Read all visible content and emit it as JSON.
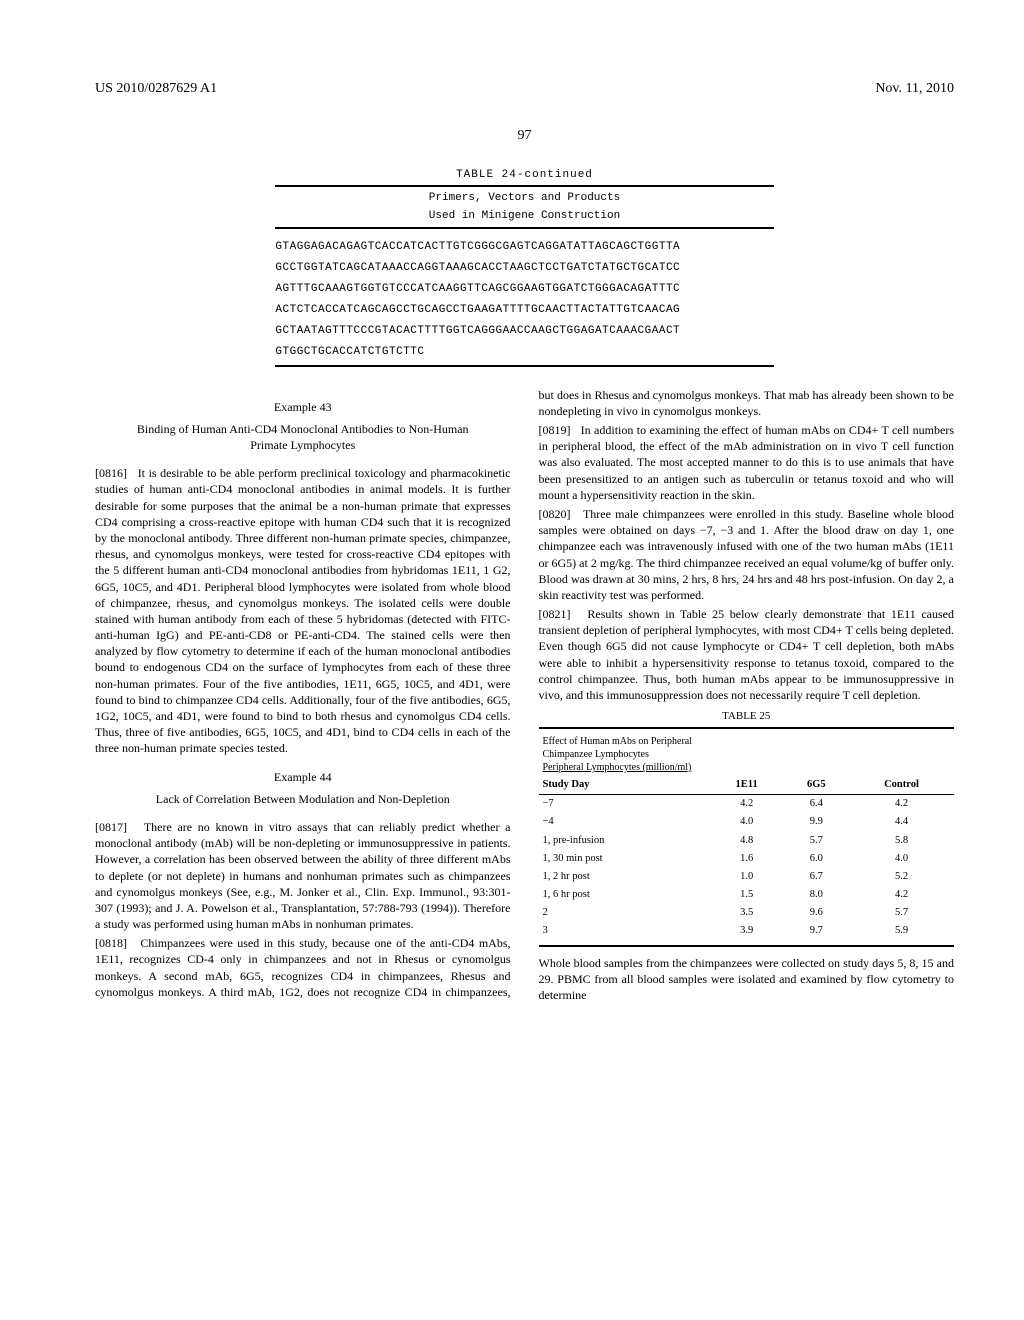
{
  "header": {
    "pub_no": "US 2010/0287629 A1",
    "date": "Nov. 11, 2010",
    "page": "97"
  },
  "table24": {
    "title": "TABLE 24-continued",
    "subtitle1": "Primers, Vectors and Products",
    "subtitle2": "Used in Minigene Construction",
    "seq1": "GTAGGAGACAGAGTCACCATCACTTGTCGGGCGAGTCAGGATATTAGCAGCTGGTTA",
    "seq2": "GCCTGGTATCAGCATAAACCAGGTAAAGCACCTAAGCTCCTGATCTATGCTGCATCC",
    "seq3": "AGTTTGCAAAGTGGTGTCCCATCAAGGTTCAGCGGAAGTGGATCTGGGACAGATTTC",
    "seq4": "ACTCTCACCATCAGCAGCCTGCAGCCTGAAGATTTTGCAACTTACTATTGTCAACAG",
    "seq5": "GCTAATAGTTTCCCGTACACTTTTGGTCAGGGAACCAAGCTGGAGATCAAACGAACT",
    "seq6": "GTGGCTGCACCATCTGTCTTC"
  },
  "ex43": {
    "label": "Example 43",
    "title": "Binding of Human Anti-CD4 Monoclonal Antibodies to Non-Human Primate Lymphocytes",
    "p0816_num": "[0816]",
    "p0816": "It is desirable to be able perform preclinical toxicology and pharmacokinetic studies of human anti-CD4 monoclonal antibodies in animal models. It is further desirable for some purposes that the animal be a non-human primate that expresses CD4 comprising a cross-reactive epitope with human CD4 such that it is recognized by the monoclonal antibody. Three different non-human primate species, chimpanzee, rhesus, and cynomolgus monkeys, were tested for cross-reactive CD4 epitopes with the 5 different human anti-CD4 monoclonal antibodies from hybridomas 1E11, 1 G2, 6G5, 10C5, and 4D1. Peripheral blood lymphocytes were isolated from whole blood of chimpanzee, rhesus, and cynomolgus monkeys. The isolated cells were double stained with human antibody from each of these 5 hybridomas (detected with FITC-anti-human IgG) and PE-anti-CD8 or PE-anti-CD4. The stained cells were then analyzed by flow cytometry to determine if each of the human monoclonal antibodies bound to endogenous CD4 on the surface of lymphocytes from each of these three non-human primates. Four of the five antibodies, 1E11, 6G5, 10C5, and 4D1, were found to bind to chimpanzee CD4 cells. Additionally, four of the five antibodies, 6G5, 1G2, 10C5, and 4D1, were found to bind to both rhesus and cynomolgus CD4 cells. Thus, three of five antibodies, 6G5, 10C5, and 4D1, bind to CD4 cells in each of the three non-human primate species tested."
  },
  "ex44": {
    "label": "Example 44",
    "title": "Lack of Correlation Between Modulation and Non-Depletion",
    "p0817_num": "[0817]",
    "p0817": "There are no known in vitro assays that can reliably predict whether a monoclonal antibody (mAb) will be non-depleting or immunosuppressive in patients. However, a correlation has been observed between the ability of three different mAbs to deplete (or not deplete) in humans and nonhuman primates such as chimpanzees and cynomolgus monkeys (See, e.g., M. Jonker et al., Clin. Exp. Immunol., 93:301-307 (1993); and J. A. Powelson et al., Transplantation, 57:788-793 (1994)). Therefore a study was performed using human mAbs in nonhuman primates.",
    "p0818_num": "[0818]",
    "p0818": "Chimpanzees were used in this study, because one of the anti-CD4 mAbs, 1E11, recognizes CD-4 only in chimpanzees and not in Rhesus or cynomolgus monkeys. A second mAb, 6G5, recognizes CD4 in chimpanzees, Rhesus and cynomolgus monkeys. A third mAb, 1G2, does not recognize CD4 in chimpanzees, but does in Rhesus and cynomolgus monkeys. That mab has already been shown to be nondepleting in vivo in cynomolgus monkeys.",
    "p0819_num": "[0819]",
    "p0819": "In addition to examining the effect of human mAbs on CD4+ T cell numbers in peripheral blood, the effect of the mAb administration on in vivo T cell function was also evaluated. The most accepted manner to do this is to use animals that have been presensitized to an antigen such as tuberculin or tetanus toxoid and who will mount a hypersensitivity reaction in the skin.",
    "p0820_num": "[0820]",
    "p0820": "Three male chimpanzees were enrolled in this study. Baseline whole blood samples were obtained on days −7, −3 and 1. After the blood draw on day 1, one chimpanzee each was intravenously infused with one of the two human mAbs (1E11 or 6G5) at 2 mg/kg. The third chimpanzee received an equal volume/kg of buffer only. Blood was drawn at 30 mins, 2 hrs, 8 hrs, 24 hrs and 48 hrs post-infusion. On day 2, a skin reactivity test was performed.",
    "p0821_num": "[0821]",
    "p0821": "Results shown in Table 25 below clearly demonstrate that 1E11 caused transient depletion of peripheral lymphocytes, with most CD4+ T cells being depleted. Even though 6G5 did not cause lymphocyte or CD4+ T cell depletion, both mAbs were able to inhibit a hypersensitivity response to tetanus toxoid, compared to the control chimpanzee. Thus, both human mAbs appear to be immunosuppressive in vivo, and this immunosuppression does not necessarily require T cell depletion."
  },
  "table25": {
    "label": "TABLE 25",
    "caption1": "Effect of Human mAbs on Peripheral",
    "caption2": "Chimpanzee Lymphocytes",
    "caption3": "Peripheral Lymphocytes (million/ml)",
    "col0": "Study Day",
    "col1": "1E11",
    "col2": "6G5",
    "col3": "Control",
    "rows": [
      {
        "d": "−7",
        "a": "4.2",
        "b": "6.4",
        "c": "4.2"
      },
      {
        "d": "−4",
        "a": "4.0",
        "b": "9.9",
        "c": "4.4"
      },
      {
        "d": "1, pre-infusion",
        "a": "4.8",
        "b": "5.7",
        "c": "5.8"
      },
      {
        "d": "1, 30 min post",
        "a": "1.6",
        "b": "6.0",
        "c": "4.0"
      },
      {
        "d": "1, 2 hr post",
        "a": "1.0",
        "b": "6.7",
        "c": "5.2"
      },
      {
        "d": "1, 6 hr post",
        "a": "1.5",
        "b": "8.0",
        "c": "4.2"
      },
      {
        "d": "2",
        "a": "3.5",
        "b": "9.6",
        "c": "5.7"
      },
      {
        "d": "3",
        "a": "3.9",
        "b": "9.7",
        "c": "5.9"
      }
    ]
  },
  "trailing": "Whole blood samples from the chimpanzees were collected on study days 5, 8, 15 and 29. PBMC from all blood samples were isolated and examined by flow cytometry to determine"
}
